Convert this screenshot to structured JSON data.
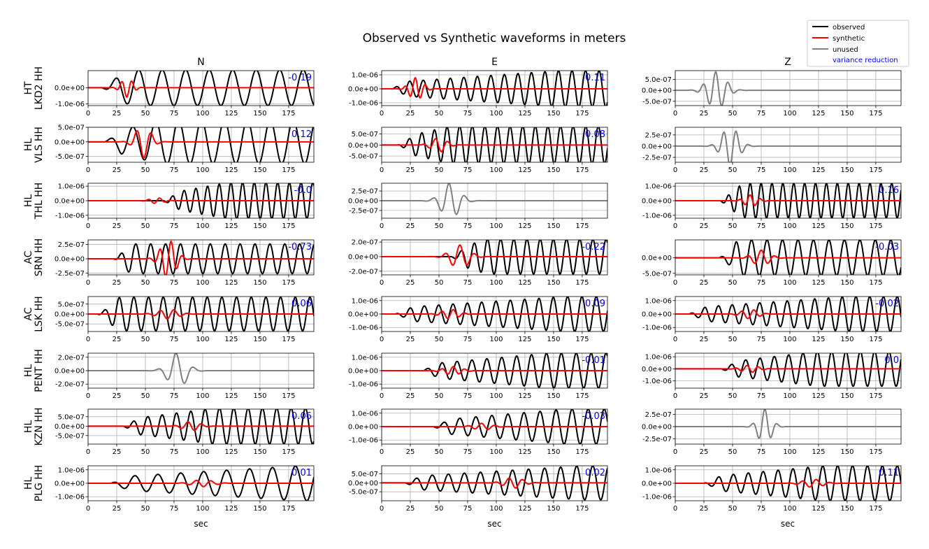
{
  "figure": {
    "title": "Observed vs Synthetic waveforms in meters",
    "xlabel": "sec",
    "columns": [
      "N",
      "E",
      "Z"
    ],
    "legend": {
      "placement": "top-right",
      "entries": [
        {
          "label": "observed",
          "color": "#000000"
        },
        {
          "label": "synthetic",
          "color": "#ff0000"
        },
        {
          "label": "unused",
          "color": "#808080"
        },
        {
          "label": "variance reduction",
          "color": "#0000ff"
        }
      ]
    }
  },
  "chart_data": {
    "type": "line",
    "xlim": [
      0,
      197
    ],
    "xticks": [
      0,
      25,
      50,
      75,
      100,
      125,
      150,
      175
    ],
    "grid": true,
    "colors": {
      "observed": "#000000",
      "synthetic": "#ff0000",
      "unused": "#808080",
      "vr": "#0000ff"
    },
    "stations": [
      {
        "label": [
          "HT",
          "LKD2 HH"
        ],
        "components": [
          {
            "status": "used",
            "vr": "-0.19",
            "ylim": [
              -1.1e-06,
              1.05e-06
            ],
            "yticks": [
              0,
              -1e-06
            ],
            "yticklabels": [
              "0.0e+00",
              "-1.0e-06"
            ],
            "obs": {
              "amp": 1.1e-06,
              "period": 20.5,
              "phase": 0.6,
              "t0": 12,
              "rise": 38
            },
            "syn": {
              "amp": 5.8e-07,
              "period": 9,
              "center": 34,
              "width": 7
            }
          },
          {
            "status": "used",
            "vr": "0.11",
            "ylim": [
              -1.2e-06,
              1.3e-06
            ],
            "yticks": [
              1e-06,
              0,
              -1e-06
            ],
            "yticklabels": [
              "1.0e-06",
              "0.0e+00",
              "-1.0e-06"
            ],
            "obs": {
              "amp": 1.3e-06,
              "period": 11.8,
              "phase": 1.1,
              "t0": 8,
              "rise": 155
            },
            "syn": {
              "amp": 8e-07,
              "period": 9,
              "center": 30,
              "width": 8
            }
          },
          {
            "status": "unused",
            "vr": "",
            "ylim": [
              -7e-07,
              9e-07
            ],
            "yticks": [
              5e-07,
              0,
              -5e-07
            ],
            "yticklabels": [
              "5.0e-07",
              "0.0e+00",
              "-5.0e-07"
            ],
            "obs": {
              "amp": 8.5e-07,
              "period": 11,
              "phase": 0.3,
              "center": 36,
              "width": 11
            }
          }
        ]
      },
      {
        "label": [
          "HL",
          "VLS HH"
        ],
        "components": [
          {
            "status": "used",
            "vr": "0.12",
            "ylim": [
              -7e-07,
              5e-07
            ],
            "yticks": [
              5e-07,
              0,
              -5e-07
            ],
            "yticklabels": [
              "5.0e-07",
              "0.0e+00",
              "-5.0e-07"
            ],
            "obs": {
              "amp": 7.5e-07,
              "period": 20,
              "phase": 1.9,
              "t0": 14,
              "rise": 62
            },
            "syn": {
              "amp": 5.5e-07,
              "period": 13,
              "center": 48,
              "width": 9
            }
          },
          {
            "status": "used",
            "vr": "0.08",
            "ylim": [
              -7.8e-07,
              8e-07
            ],
            "yticks": [
              5e-07,
              0,
              -5e-07
            ],
            "yticklabels": [
              "5.0e-07",
              "0.0e+00",
              "-5.0e-07"
            ],
            "obs": {
              "amp": 8.5e-07,
              "period": 11,
              "phase": 0.4,
              "t0": 14,
              "rise": 60
            },
            "syn": {
              "amp": 3.2e-07,
              "period": 11,
              "center": 50,
              "width": 9
            }
          },
          {
            "status": "unused",
            "vr": "",
            "ylim": [
              -3.6e-07,
              4.2e-07
            ],
            "yticks": [
              2.5e-07,
              0,
              -2.5e-07
            ],
            "yticklabels": [
              "2.5e-07",
              "0.0e+00",
              "-2.5e-07"
            ],
            "obs": {
              "amp": 4.3e-07,
              "period": 11,
              "phase": 2.6,
              "center": 48,
              "width": 10
            }
          }
        ]
      },
      {
        "label": [
          "HL",
          "THL HH"
        ],
        "components": [
          {
            "status": "used",
            "vr": "-0.0",
            "ylim": [
              -1.2e-06,
              1.2e-06
            ],
            "yticks": [
              1e-06,
              0,
              -1e-06
            ],
            "yticklabels": [
              "1.0e-06",
              "0.0e+00",
              "-1.0e-06"
            ],
            "obs": {
              "amp": 1.25e-06,
              "period": 10.2,
              "phase": 0.2,
              "t0": 65,
              "rise": 122
            },
            "syn": {
              "amp": 2e-07,
              "period": 10,
              "center": 60,
              "width": 8
            }
          },
          {
            "status": "unused",
            "vr": "",
            "ylim": [
              -4.5e-07,
              4.5e-07
            ],
            "yticks": [
              2.5e-07,
              0,
              -2.5e-07
            ],
            "yticklabels": [
              "2.5e-07",
              "0.0e+00",
              "-2.5e-07"
            ],
            "obs": {
              "amp": 4.5e-07,
              "period": 14,
              "phase": 0.4,
              "center": 60,
              "width": 11
            }
          },
          {
            "status": "used",
            "vr": "0.16",
            "ylim": [
              -1.2e-06,
              1.2e-06
            ],
            "yticks": [
              1e-06,
              0,
              -1e-06
            ],
            "yticklabels": [
              "1.0e-06",
              "0.0e+00",
              "-1.0e-06"
            ],
            "obs": {
              "amp": 1.2e-06,
              "period": 9.5,
              "phase": 2.3,
              "t0": 38,
              "rise": 62
            },
            "syn": {
              "amp": 4e-07,
              "period": 9,
              "center": 66,
              "width": 8
            }
          }
        ]
      },
      {
        "label": [
          "AC",
          "SRN HH"
        ],
        "components": [
          {
            "status": "used",
            "vr": "-0.73",
            "ylim": [
              -2.8e-07,
              3.3e-07
            ],
            "yticks": [
              2.5e-07,
              0,
              -2.5e-07
            ],
            "yticklabels": [
              "2.5e-07",
              "0.0e+00",
              "-2.5e-07"
            ],
            "obs": {
              "amp": 2.6e-07,
              "period": 13,
              "phase": 0.3,
              "t0": 22,
              "rise": 32
            },
            "syn": {
              "amp": 3.3e-07,
              "period": 10,
              "center": 70,
              "width": 9
            }
          },
          {
            "status": "used",
            "vr": "-0.22",
            "ylim": [
              -2.5e-07,
              2.3e-07
            ],
            "yticks": [
              2e-07,
              0,
              -2e-07
            ],
            "yticklabels": [
              "2.0e-07",
              "0.0e+00",
              "-2.0e-07"
            ],
            "obs": {
              "amp": 2.4e-07,
              "period": 11.5,
              "phase": 1.4,
              "t0": 60,
              "rise": 92
            },
            "syn": {
              "amp": 1.6e-07,
              "period": 13,
              "center": 68,
              "width": 11
            }
          },
          {
            "status": "used",
            "vr": "-0.03",
            "ylim": [
              -5.5e-07,
              5.8e-07
            ],
            "yticks": [
              0,
              -5e-07
            ],
            "yticklabels": [
              "0.0e+00",
              "-5.0e-07"
            ],
            "obs": {
              "amp": 5.8e-07,
              "period": 13.5,
              "phase": 2.0,
              "t0": 38,
              "rise": 56
            },
            "syn": {
              "amp": 2.5e-07,
              "period": 12,
              "center": 75,
              "width": 10
            }
          }
        ]
      },
      {
        "label": [
          "AC",
          "LSK HH"
        ],
        "components": [
          {
            "status": "used",
            "vr": "0.06",
            "ylim": [
              -8.8e-07,
              8.8e-07
            ],
            "yticks": [
              5e-07,
              0,
              -5e-07
            ],
            "yticklabels": [
              "5.0e-07",
              "0.0e+00",
              "-5.0e-07"
            ],
            "obs": {
              "amp": 8.5e-07,
              "period": 12.8,
              "phase": 0.8,
              "t0": 8,
              "rise": 28
            },
            "syn": {
              "amp": 2.5e-07,
              "period": 12,
              "center": 70,
              "width": 12
            }
          },
          {
            "status": "used",
            "vr": "0.09",
            "ylim": [
              -1.3e-06,
              1.3e-06
            ],
            "yticks": [
              1e-06,
              0,
              -1e-06
            ],
            "yticklabels": [
              "1.0e-06",
              "0.0e+00",
              "-1.0e-06"
            ],
            "obs": {
              "amp": 1.3e-06,
              "period": 12.5,
              "phase": 1.7,
              "t0": 12,
              "rise": 160
            },
            "syn": {
              "amp": 3.5e-07,
              "period": 10,
              "center": 60,
              "width": 10
            }
          },
          {
            "status": "used",
            "vr": "-0.02",
            "ylim": [
              -1.3e-06,
              1.3e-06
            ],
            "yticks": [
              1e-06,
              0,
              -1e-06
            ],
            "yticklabels": [
              "1.0e-06",
              "0.0e+00",
              "-1.0e-06"
            ],
            "obs": {
              "amp": 1.3e-06,
              "period": 12,
              "phase": 0.7,
              "t0": 12,
              "rise": 150
            },
            "syn": {
              "amp": 3.5e-07,
              "period": 11,
              "center": 65,
              "width": 10
            }
          }
        ]
      },
      {
        "label": [
          "HL",
          "PENT HH"
        ],
        "components": [
          {
            "status": "unused",
            "vr": "",
            "ylim": [
              -2.6e-07,
              2.6e-07
            ],
            "yticks": [
              2e-07,
              0,
              -2e-07
            ],
            "yticklabels": [
              "2.0e-07",
              "0.0e+00",
              "-2.0e-07"
            ],
            "obs": {
              "amp": 2.6e-07,
              "period": 16,
              "phase": 2.9,
              "center": 78,
              "width": 11
            }
          },
          {
            "status": "used",
            "vr": "-0.01",
            "ylim": [
              -1.3e-06,
              1.3e-06
            ],
            "yticks": [
              1e-06,
              0,
              -1e-06
            ],
            "yticklabels": [
              "1.0e-06",
              "0.0e+00",
              "-1.0e-06"
            ],
            "obs": {
              "amp": 1.3e-06,
              "period": 13,
              "phase": 1.2,
              "t0": 35,
              "rise": 145
            },
            "syn": {
              "amp": 3e-07,
              "period": 10,
              "center": 62,
              "width": 11
            }
          },
          {
            "status": "used",
            "vr": "0.0",
            "ylim": [
              -1.6e-06,
              1.3e-06
            ],
            "yticks": [
              1e-06,
              0,
              -1e-06
            ],
            "yticklabels": [
              "1.0e-06",
              "0.0e+00",
              "-1.0e-06"
            ],
            "obs": {
              "amp": 1.45e-06,
              "period": 12.5,
              "phase": 2.1,
              "t0": 40,
              "rise": 125
            },
            "syn": {
              "amp": 3e-07,
              "period": 10,
              "center": 65,
              "width": 10
            }
          }
        ]
      },
      {
        "label": [
          "HL",
          "KZN HH"
        ],
        "components": [
          {
            "status": "used",
            "vr": "0.06",
            "ylim": [
              -9.5e-07,
              9e-07
            ],
            "yticks": [
              5e-07,
              0,
              -5e-07
            ],
            "yticklabels": [
              "5.0e-07",
              "0.0e+00",
              "-5.0e-07"
            ],
            "obs": {
              "amp": 9.5e-07,
              "period": 12.5,
              "phase": 0.5,
              "t0": 30,
              "rise": 110
            },
            "syn": {
              "amp": 2.5e-07,
              "period": 12,
              "center": 90,
              "width": 10
            }
          },
          {
            "status": "used",
            "vr": "-0.03",
            "ylim": [
              -1.3e-06,
              1.3e-06
            ],
            "yticks": [
              1e-06,
              0,
              -1e-06
            ],
            "yticklabels": [
              "1.0e-06",
              "0.0e+00",
              "-1.0e-06"
            ],
            "obs": {
              "amp": 1.3e-06,
              "period": 14,
              "phase": 2.4,
              "t0": 45,
              "rise": 160
            },
            "syn": {
              "amp": 2.5e-07,
              "period": 12,
              "center": 88,
              "width": 11
            }
          },
          {
            "status": "unused",
            "vr": "",
            "ylim": [
              -3.6e-07,
              3.6e-07
            ],
            "yticks": [
              2.5e-07,
              0,
              -2.5e-07
            ],
            "yticklabels": [
              "2.5e-07",
              "0.0e+00",
              "-2.5e-07"
            ],
            "obs": {
              "amp": 3.6e-07,
              "period": 11,
              "phase": 0.9,
              "center": 78,
              "width": 8
            }
          }
        ]
      },
      {
        "label": [
          "HL",
          "PLG HH"
        ],
        "components": [
          {
            "status": "used",
            "vr": "0.01",
            "ylim": [
              -1.3e-06,
              1.3e-06
            ],
            "yticks": [
              1e-06,
              0,
              -1e-06
            ],
            "yticklabels": [
              "1.0e-06",
              "0.0e+00",
              "-1.0e-06"
            ],
            "obs": {
              "amp": 1.3e-06,
              "period": 20,
              "phase": 1.3,
              "t0": 20,
              "rise": 185
            },
            "syn": {
              "amp": 2.5e-07,
              "period": 13,
              "center": 100,
              "width": 13
            }
          },
          {
            "status": "used",
            "vr": "0.02",
            "ylim": [
              -1e-06,
              9.5e-07
            ],
            "yticks": [
              5e-07,
              0,
              -5e-07
            ],
            "yticklabels": [
              "5.0e-07",
              "0.0e+00",
              "-5.0e-07"
            ],
            "obs": {
              "amp": 9.5e-07,
              "period": 14,
              "phase": 0.6,
              "t0": 20,
              "rise": 175
            },
            "syn": {
              "amp": 3e-07,
              "period": 12,
              "center": 115,
              "width": 11
            }
          },
          {
            "status": "used",
            "vr": "0.11",
            "ylim": [
              -1.3e-06,
              1.3e-06
            ],
            "yticks": [
              1e-06,
              0,
              -1e-06
            ],
            "yticklabels": [
              "1.0e-06",
              "0.0e+00",
              "-1.0e-06"
            ],
            "obs": {
              "amp": 1.3e-06,
              "period": 13,
              "phase": 2.2,
              "t0": 25,
              "rise": 130
            },
            "syn": {
              "amp": 3e-07,
              "period": 12,
              "center": 120,
              "width": 12
            }
          }
        ]
      }
    ]
  }
}
